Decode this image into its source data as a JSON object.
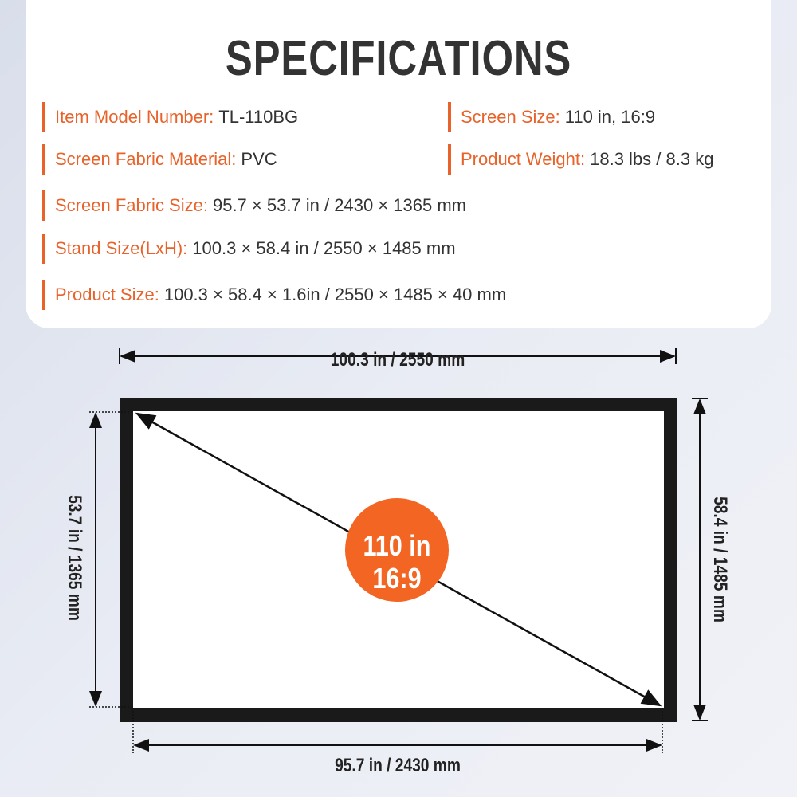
{
  "title": "SPECIFICATIONS",
  "specs": [
    {
      "label": "Item Model Number:",
      "value": "TL-110BG"
    },
    {
      "label": "Screen Size:",
      "value": "110 in, 16:9"
    },
    {
      "label": "Screen Fabric Material:",
      "value": "PVC"
    },
    {
      "label": "Product Weight:",
      "value": "18.3 lbs / 8.3 kg"
    },
    {
      "label": "Screen Fabric Size:",
      "value": "95.7 × 53.7 in / 2430 × 1365 mm"
    },
    {
      "label": "Stand Size(LxH):",
      "value": "100.3 × 58.4 in / 2550 × 1485 mm"
    },
    {
      "label": "Product Size:",
      "value": "100.3 × 58.4 × 1.6in / 2550 × 1485 × 40 mm"
    }
  ],
  "diagram": {
    "top_width": "100.3 in / 2550 mm",
    "bottom_width": "95.7 in / 2430 mm",
    "left_height": "53.7 in / 1365 mm",
    "right_height": "58.4 in / 1485 mm",
    "badge_line1": "110 in",
    "badge_line2": "16:9"
  },
  "colors": {
    "accent": "#e8622a",
    "frame": "#1a1a1a",
    "badge": "#f26522"
  }
}
